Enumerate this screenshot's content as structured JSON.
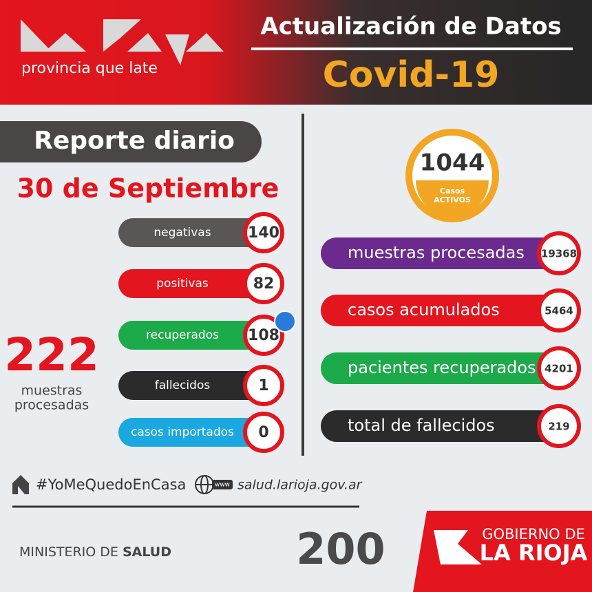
{
  "header": {
    "tagline": "provincia que late",
    "title": "Actualización de Datos",
    "subtitle": "Covid-19"
  },
  "daily_report": {
    "title": "Reporte diario",
    "date": "30 de Septiembre",
    "rows": [
      {
        "label": "negativas",
        "value": 140
      },
      {
        "label": "positivas",
        "value": 82
      },
      {
        "label": "recuperados",
        "value": 108
      },
      {
        "label": "fallecidos",
        "value": 1
      },
      {
        "label": "casos importados",
        "value": 0
      }
    ],
    "samples_total": 222,
    "samples_caption": [
      "muestras",
      "procesadas"
    ]
  },
  "active_cases": {
    "value": 1044,
    "caption": [
      "Casos",
      "ACTIVOS"
    ]
  },
  "totals": [
    {
      "label": "muestras procesadas",
      "value": 19368
    },
    {
      "label": "casos acumulados",
      "value": 5464
    },
    {
      "label": "pacientes recuperados",
      "value": 4201
    },
    {
      "label": "total de fallecidos",
      "value": 219
    }
  ],
  "footer": {
    "hashtag": "#YoMeQuedoEnCasa",
    "www": "www",
    "website": "salud.larioja.gov.ar",
    "ministry": "MINISTERIO DE",
    "ministry_bold": "SALUD",
    "anniversary": "200",
    "government": "GOBIERNO DE",
    "province": "LA RIOJA"
  }
}
